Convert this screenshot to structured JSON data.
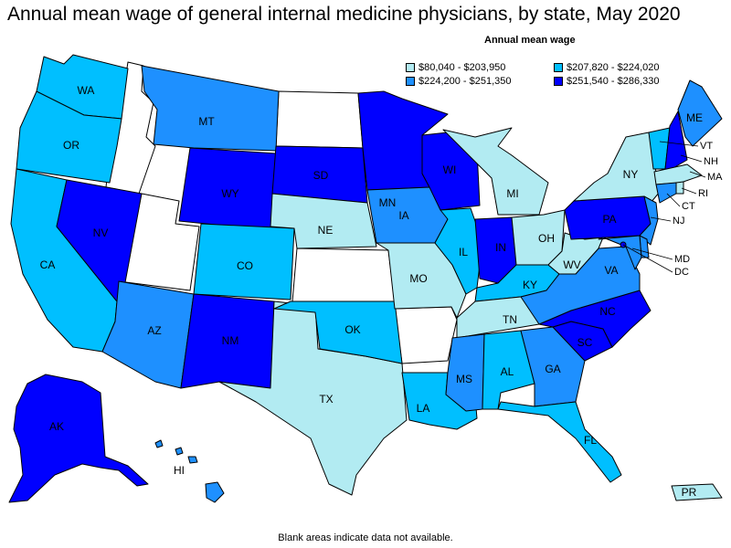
{
  "title": "Annual mean wage of general internal medicine physicians, by state, May 2020",
  "legend": {
    "title": "Annual mean wage",
    "items": [
      {
        "label": "$80,040 - $203,950",
        "color": "#b2ebf2"
      },
      {
        "label": "$207,820 - $224,020",
        "color": "#00bfff"
      },
      {
        "label": "$224,200 - $251,350",
        "color": "#1e90ff"
      },
      {
        "label": "$251,540 - $286,330",
        "color": "#0000ff"
      }
    ]
  },
  "footnote": "Blank areas indicate data not available.",
  "states": {
    "WA": "$207,820 - $224,020",
    "OR": "$207,820 - $224,020",
    "CA": "$207,820 - $224,020",
    "NV": "$251,540 - $286,330",
    "MT": "$224,200 - $251,350",
    "WY": "$251,540 - $286,330",
    "CO": "$207,820 - $224,020",
    "AZ": "$224,200 - $251,350",
    "NM": "$251,540 - $286,330",
    "SD": "$251,540 - $286,330",
    "NE": "$80,040 - $203,950",
    "TX": "$80,040 - $203,950",
    "OK": "$207,820 - $224,020",
    "MN": "$251,540 - $286,330",
    "IA": "$224,200 - $251,350",
    "MO": "$80,040 - $203,950",
    "LA": "$207,820 - $224,020",
    "WI": "$251,540 - $286,330",
    "IL": "$207,820 - $224,020",
    "MI": "$80,040 - $203,950",
    "IN": "$251,540 - $286,330",
    "OH": "$80,040 - $203,950",
    "KY": "$207,820 - $224,020",
    "TN": "$80,040 - $203,950",
    "MS": "$224,200 - $251,350",
    "AL": "$207,820 - $224,020",
    "GA": "$224,200 - $251,350",
    "FL": "$207,820 - $224,020",
    "SC": "$251,540 - $286,330",
    "NC": "$251,540 - $286,330",
    "VA": "$224,200 - $251,350",
    "WV": "$80,040 - $203,950",
    "PA": "$251,540 - $286,330",
    "NY": "$80,040 - $203,950",
    "ME": "$224,200 - $251,350",
    "VT": "$207,820 - $224,020",
    "NH": "$251,540 - $286,330",
    "MA": "$80,040 - $203,950",
    "RI": "$80,040 - $203,950",
    "CT": "$224,200 - $251,350",
    "NJ": "$224,200 - $251,350",
    "DE": "$224,200 - $251,350",
    "MD": "$224,200 - $251,350",
    "DC": "$251,540 - $286,330",
    "AK": "$251,540 - $286,330",
    "HI": "$224,200 - $251,350",
    "PR": "$80,040 - $203,950"
  },
  "labels": {
    "WA": "WA",
    "OR": "OR",
    "CA": "CA",
    "NV": "NV",
    "MT": "MT",
    "WY": "WY",
    "CO": "CO",
    "AZ": "AZ",
    "NM": "NM",
    "SD": "SD",
    "NE": "NE",
    "TX": "TX",
    "OK": "OK",
    "MN": "MN",
    "IA": "IA",
    "MO": "MO",
    "LA": "LA",
    "WI": "WI",
    "IL": "IL",
    "MI": "MI",
    "IN": "IN",
    "OH": "OH",
    "KY": "KY",
    "TN": "TN",
    "MS": "MS",
    "AL": "AL",
    "GA": "GA",
    "FL": "FL",
    "SC": "SC",
    "NC": "NC",
    "VA": "VA",
    "WV": "WV",
    "PA": "PA",
    "NY": "NY",
    "ME": "ME",
    "VT": "VT",
    "NH": "NH",
    "MA": "MA",
    "RI": "RI",
    "CT": "CT",
    "NJ": "NJ",
    "MD": "MD",
    "DC": "DC",
    "AK": "AK",
    "HI": "HI",
    "PR": "PR"
  }
}
